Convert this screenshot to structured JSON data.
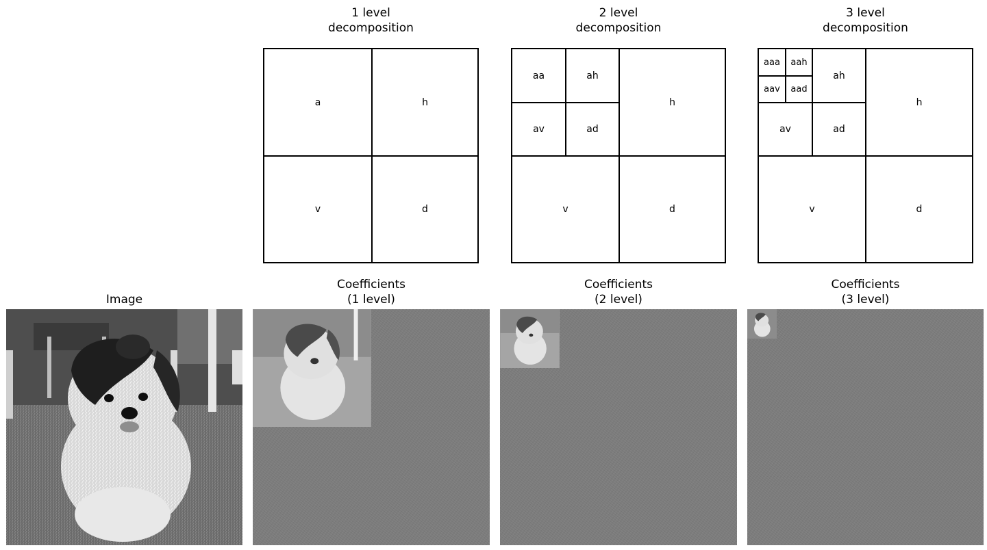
{
  "decomposition_panels": [
    {
      "title": "1 level\ndecomposition",
      "labels": {
        "a": "a",
        "h": "h",
        "v": "v",
        "d": "d"
      }
    },
    {
      "title": "2 level\ndecomposition",
      "labels": {
        "aa": "aa",
        "ah": "ah",
        "av": "av",
        "ad": "ad",
        "h": "h",
        "v": "v",
        "d": "d"
      }
    },
    {
      "title": "3 level\ndecomposition",
      "labels": {
        "aaa": "aaa",
        "aah": "aah",
        "aav": "aav",
        "aad": "aad",
        "ah": "ah",
        "av": "av",
        "ad": "ad",
        "h": "h",
        "v": "v",
        "d": "d"
      }
    }
  ],
  "image_panel": {
    "title": "Image",
    "subject": "grayscale-dog-photo"
  },
  "coefficient_panels": [
    {
      "title": "Coefficients\n(1 level)"
    },
    {
      "title": "Coefficients\n(2 level)"
    },
    {
      "title": "Coefficients\n(3 level)"
    }
  ]
}
